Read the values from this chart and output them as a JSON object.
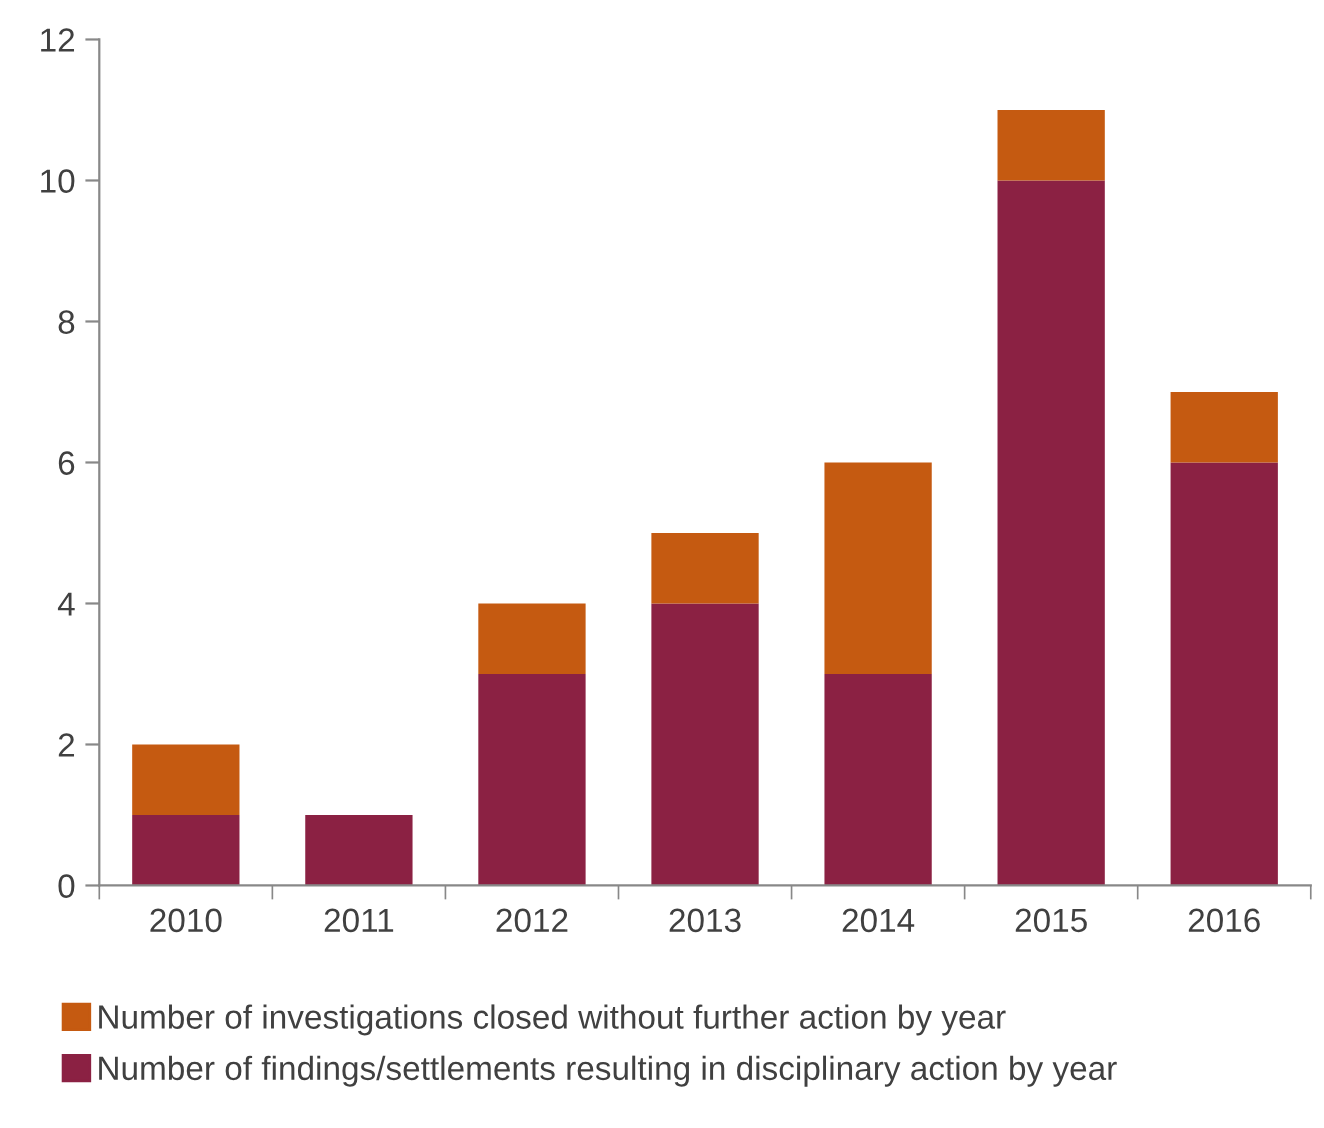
{
  "chart_data": {
    "type": "bar",
    "stacked": true,
    "categories": [
      "2010",
      "2011",
      "2012",
      "2013",
      "2014",
      "2015",
      "2016"
    ],
    "series": [
      {
        "name": "Number of findings/settlements resulting in disciplinary action by year",
        "color": "#8b2143",
        "values": [
          1,
          1,
          3,
          4,
          3,
          10,
          6
        ]
      },
      {
        "name": "Number of investigations closed without further action by year",
        "color": "#c55a11",
        "values": [
          1,
          0,
          1,
          1,
          3,
          1,
          1
        ]
      }
    ],
    "ylim": [
      0,
      12
    ],
    "yticks": [
      0,
      2,
      4,
      6,
      8,
      10,
      12
    ],
    "grid": false,
    "legend": "bottom"
  }
}
